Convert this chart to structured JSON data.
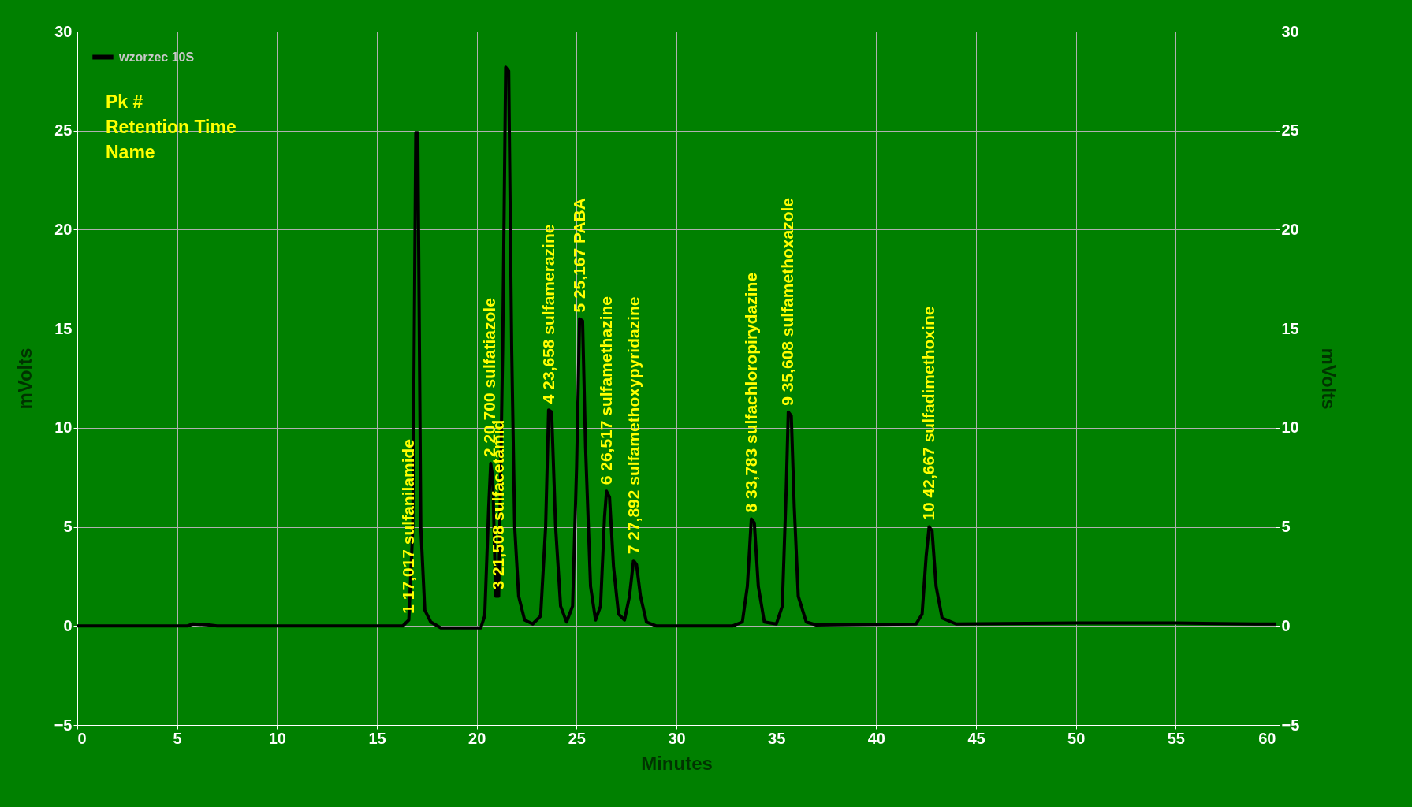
{
  "chart_data": {
    "type": "line",
    "xlabel": "Minutes",
    "ylabel": "mVolts",
    "y2label": "mVolts",
    "xlim": [
      0,
      60
    ],
    "xticks": [
      0,
      5,
      10,
      15,
      20,
      25,
      30,
      35,
      40,
      45,
      50,
      55,
      60
    ],
    "ylim": [
      -5,
      30
    ],
    "yticks": [
      -5,
      0,
      5,
      10,
      15,
      20,
      25,
      30
    ],
    "y2lim": [
      -5,
      30
    ],
    "y2ticks": [
      -5,
      0,
      5,
      10,
      15,
      20,
      25,
      30
    ],
    "grid": true,
    "legend": "top left",
    "series": [
      {
        "name": "wzorzec 10S",
        "color": "#000000",
        "x": [
          0,
          5.5,
          5.8,
          6.6,
          7,
          16.3,
          16.6,
          16.8,
          16.95,
          17.05,
          17.2,
          17.4,
          17.7,
          18.2,
          20.2,
          20.4,
          20.6,
          20.7,
          20.8,
          20.95,
          21.1,
          21.3,
          21.45,
          21.6,
          21.75,
          21.9,
          22.1,
          22.4,
          22.8,
          23.2,
          23.45,
          23.6,
          23.75,
          23.95,
          24.2,
          24.5,
          24.8,
          25,
          25.15,
          25.3,
          25.45,
          25.7,
          25.95,
          26.2,
          26.4,
          26.5,
          26.65,
          26.85,
          27.1,
          27.4,
          27.65,
          27.85,
          28,
          28.2,
          28.5,
          29,
          32.8,
          33.3,
          33.55,
          33.75,
          33.9,
          34.1,
          34.4,
          35,
          35.3,
          35.5,
          35.6,
          35.75,
          35.9,
          36.1,
          36.5,
          37,
          42,
          42.3,
          42.5,
          42.65,
          42.8,
          43,
          43.3,
          44,
          50,
          55,
          59,
          60
        ],
        "values": [
          0,
          0,
          0.1,
          0.05,
          0,
          0,
          0.3,
          5,
          24.9,
          24.9,
          5,
          0.8,
          0.2,
          -0.1,
          -0.1,
          0.5,
          6,
          8.2,
          7.5,
          1.5,
          1.5,
          14,
          28.2,
          28,
          14,
          5,
          1.5,
          0.3,
          0.1,
          0.5,
          5,
          10.9,
          10.8,
          5,
          1,
          0.2,
          1,
          8,
          15.5,
          15.4,
          9,
          2,
          0.3,
          1,
          5.5,
          6.8,
          6.5,
          3,
          0.6,
          0.3,
          1.5,
          3.3,
          3.1,
          1.5,
          0.2,
          0,
          0,
          0.2,
          2,
          5.4,
          5.2,
          2,
          0.2,
          0.1,
          1,
          7,
          10.8,
          10.6,
          6,
          1.5,
          0.2,
          0.05,
          0.1,
          0.6,
          3.5,
          5,
          4.8,
          2,
          0.4,
          0.1,
          0.15,
          0.15,
          0.1,
          0.1
        ]
      }
    ],
    "annotations": [
      "Pk #",
      "Retention Time",
      "Name",
      {
        "text": "1  17,017  sulfanilamide",
        "x": 16.6,
        "y": 0.3
      },
      {
        "text": "2  20,700  sulfatiazole",
        "x": 20.7,
        "y": 8.2
      },
      {
        "text": "3  21,508  sulfacetamid",
        "x": 21.1,
        "y": 1.5
      },
      {
        "text": "4  23,658  sulfamerazine",
        "x": 23.658,
        "y": 10.9
      },
      {
        "text": "5  25,167  PABA",
        "x": 25.167,
        "y": 15.5
      },
      {
        "text": "6  26,517  sulfamethazine",
        "x": 26.517,
        "y": 6.8
      },
      {
        "text": "7  27,892  sulfamethoxypyridazine",
        "x": 27.892,
        "y": 3.3
      },
      {
        "text": "8  33,783  sulfachloropirydazine",
        "x": 33.783,
        "y": 5.4
      },
      {
        "text": "9  35,608  sulfamethoxazole",
        "x": 35.608,
        "y": 10.8
      },
      {
        "text": "10  42,667  sulfadimethoxine",
        "x": 42.667,
        "y": 5
      }
    ]
  }
}
